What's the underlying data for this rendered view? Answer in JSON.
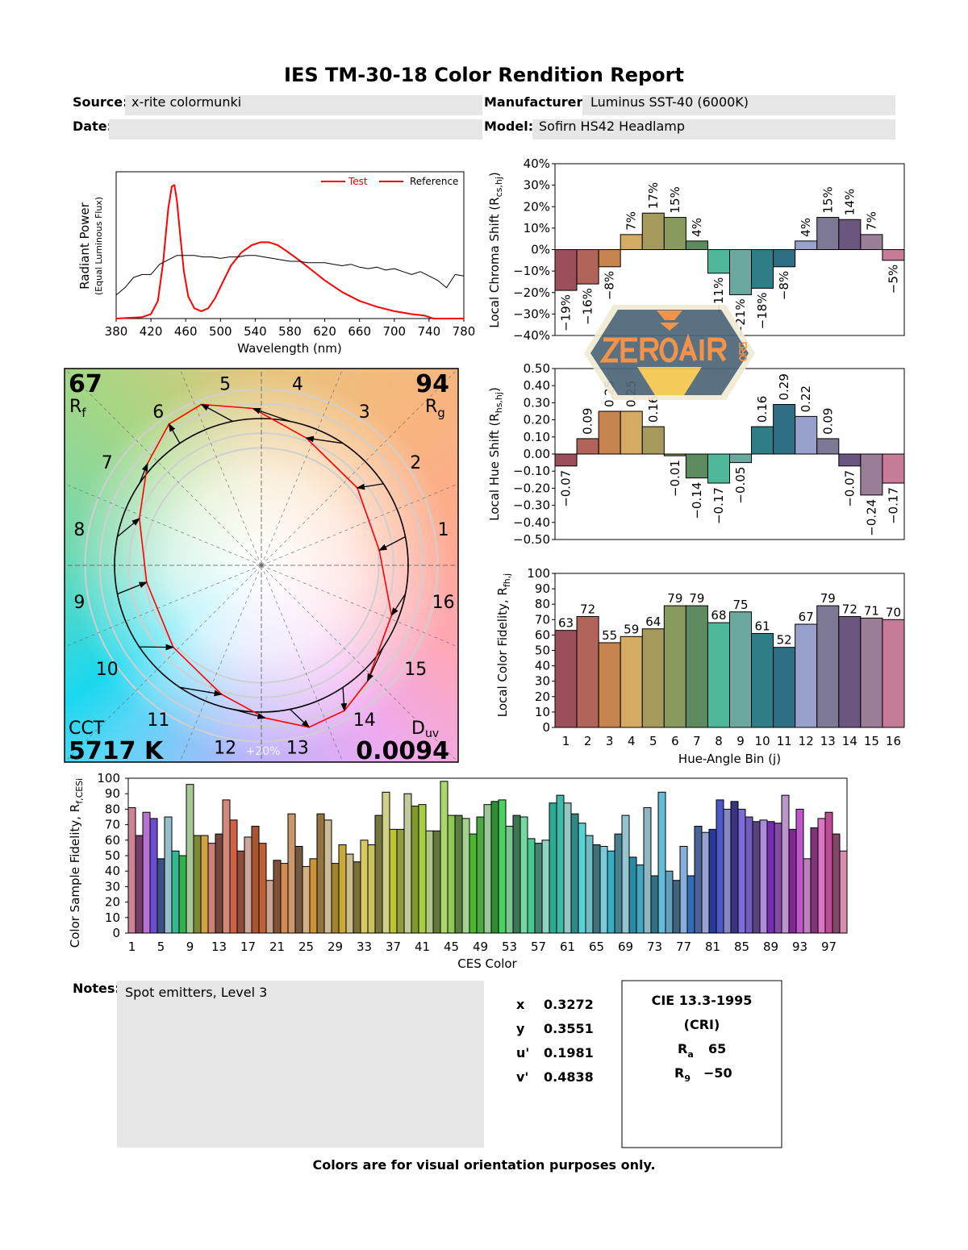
{
  "report": {
    "title": "IES TM-30-18 Color Rendition Report",
    "source_label": "Source:",
    "source_value": "x-rite colormunki",
    "manufacturer_label": "Manufacturer:",
    "manufacturer_value": "Luminus SST-40 (6000K)",
    "date_label": "Date:",
    "date_value": "",
    "model_label": "Model:",
    "model_value": "Sofirn HS42 Headlamp",
    "notes_label": "Notes:",
    "notes_value": "Spot emitters, Level 3",
    "footer": "Colors are for visual orientation purposes only.",
    "watermark_logo": "ZEROAIR.ORG"
  },
  "chromaticity": [
    {
      "label": "x",
      "value": "0.3272"
    },
    {
      "label": "y",
      "value": "0.3551"
    },
    {
      "label": "u'",
      "value": "0.1981"
    },
    {
      "label": "v'",
      "value": "0.4838"
    }
  ],
  "cri": {
    "title": "CIE 13.3-1995",
    "subtitle": "(CRI)",
    "ra_label": "R",
    "ra_sub": "a",
    "ra_value": "65",
    "r9_label": "R",
    "r9_sub": "9",
    "r9_value": "-50"
  },
  "vector_graphic": {
    "rf_value": "67",
    "rf_label": "R",
    "rf_sub": "f",
    "rg_value": "94",
    "rg_label": "R",
    "rg_sub": "g",
    "cct_label": "CCT",
    "cct_value": "5717 K",
    "duv_label": "D",
    "duv_sub": "uv",
    "duv_value": "0.0094",
    "scale_label": "+20%",
    "bin_labels": [
      "1",
      "2",
      "3",
      "4",
      "5",
      "6",
      "7",
      "8",
      "9",
      "10",
      "11",
      "12",
      "13",
      "14",
      "15",
      "16"
    ]
  },
  "colors": {
    "test": "#ff0000",
    "reference": "#000000",
    "bins": [
      "#9b4f5a",
      "#b0645a",
      "#c7844e",
      "#d3ab63",
      "#a59a5c",
      "#889a5e",
      "#5d8a5f",
      "#50b89a",
      "#6aa8a0",
      "#2f7d86",
      "#2f6f86",
      "#98a0cc",
      "#7d7894",
      "#6b5680",
      "#9a7d96",
      "#c67b98"
    ]
  },
  "chart_data": [
    {
      "type": "line",
      "name": "spectrum",
      "xlabel": "Wavelength (nm)",
      "ylabel": "Radiant Power",
      "ylabel2": "(Equal Luminous Flux)",
      "xlim": [
        380,
        780
      ],
      "xticks": [
        380,
        420,
        460,
        500,
        540,
        580,
        620,
        660,
        700,
        740,
        780
      ],
      "legend": [
        "Test",
        "Reference"
      ],
      "legend_position": "top-right",
      "series": [
        {
          "name": "Test",
          "x": [
            380,
            410,
            420,
            428,
            434,
            440,
            444,
            447,
            450,
            454,
            458,
            463,
            470,
            478,
            486,
            494,
            502,
            512,
            524,
            536,
            546,
            556,
            566,
            576,
            590,
            605,
            620,
            640,
            660,
            680,
            700,
            720,
            735,
            745,
            780
          ],
          "y": [
            0.0,
            0.01,
            0.03,
            0.12,
            0.38,
            0.75,
            0.9,
            0.91,
            0.8,
            0.55,
            0.32,
            0.15,
            0.07,
            0.05,
            0.07,
            0.14,
            0.24,
            0.36,
            0.45,
            0.5,
            0.52,
            0.52,
            0.5,
            0.46,
            0.4,
            0.33,
            0.26,
            0.18,
            0.12,
            0.08,
            0.05,
            0.03,
            0.02,
            0.0,
            0.0
          ]
        },
        {
          "name": "Reference",
          "x": [
            380,
            390,
            400,
            410,
            420,
            430,
            440,
            450,
            460,
            470,
            480,
            490,
            500,
            510,
            520,
            530,
            540,
            550,
            560,
            570,
            580,
            590,
            600,
            610,
            620,
            630,
            640,
            650,
            660,
            670,
            680,
            690,
            700,
            710,
            720,
            730,
            740,
            750,
            760,
            770,
            780
          ],
          "y": [
            0.16,
            0.21,
            0.28,
            0.3,
            0.3,
            0.37,
            0.4,
            0.43,
            0.43,
            0.43,
            0.42,
            0.42,
            0.41,
            0.42,
            0.42,
            0.43,
            0.43,
            0.42,
            0.41,
            0.4,
            0.39,
            0.39,
            0.38,
            0.38,
            0.38,
            0.37,
            0.36,
            0.37,
            0.35,
            0.34,
            0.35,
            0.33,
            0.34,
            0.32,
            0.3,
            0.32,
            0.29,
            0.26,
            0.21,
            0.3,
            0.29
          ]
        }
      ]
    },
    {
      "type": "bar",
      "name": "local-chroma-shift",
      "ylabel": "Local Chroma Shift (R",
      "ylabel_sub": "cs,hj",
      "ylim": [
        -40,
        40
      ],
      "yticks": [
        40,
        30,
        20,
        10,
        0,
        -10,
        -20,
        -30,
        -40
      ],
      "unit": "%",
      "categories": [
        "1",
        "2",
        "3",
        "4",
        "5",
        "6",
        "7",
        "8",
        "9",
        "10",
        "11",
        "12",
        "13",
        "14",
        "15",
        "16"
      ],
      "values": [
        -19,
        -16,
        -8,
        7,
        17,
        15,
        4,
        -11,
        -21,
        -18,
        -8,
        4,
        15,
        14,
        7,
        -5
      ]
    },
    {
      "type": "bar",
      "name": "local-hue-shift",
      "ylabel": "Local Hue Shift (R",
      "ylabel_sub": "hs,hj",
      "ylim": [
        -0.5,
        0.5
      ],
      "yticks": [
        0.5,
        0.4,
        0.3,
        0.2,
        0.1,
        0,
        -0.1,
        -0.2,
        -0.3,
        -0.4,
        -0.5
      ],
      "categories": [
        "1",
        "2",
        "3",
        "4",
        "5",
        "6",
        "7",
        "8",
        "9",
        "10",
        "11",
        "12",
        "13",
        "14",
        "15",
        "16"
      ],
      "values": [
        -0.07,
        0.09,
        0.25,
        0.25,
        0.16,
        -0.01,
        -0.14,
        -0.17,
        -0.05,
        0.16,
        0.29,
        0.22,
        0.09,
        -0.07,
        -0.24,
        -0.17
      ]
    },
    {
      "type": "bar",
      "name": "local-color-fidelity",
      "ylabel": "Local Color Fidelity, R",
      "ylabel_sub": "fh,j",
      "xlabel": "Hue-Angle Bin (j)",
      "ylim": [
        0,
        100
      ],
      "yticks": [
        0,
        10,
        20,
        30,
        40,
        50,
        60,
        70,
        80,
        90,
        100
      ],
      "categories": [
        "1",
        "2",
        "3",
        "4",
        "5",
        "6",
        "7",
        "8",
        "9",
        "10",
        "11",
        "12",
        "13",
        "14",
        "15",
        "16"
      ],
      "values": [
        63,
        72,
        55,
        59,
        64,
        79,
        79,
        68,
        75,
        61,
        52,
        67,
        79,
        72,
        71,
        70
      ]
    },
    {
      "type": "bar",
      "name": "color-sample-fidelity",
      "ylabel": "Color Sample Fidelity, R",
      "ylabel_sub": "f,CESi",
      "xlabel": "CES Color",
      "ylim": [
        0,
        100
      ],
      "yticks": [
        0,
        10,
        20,
        30,
        40,
        50,
        60,
        70,
        80,
        90,
        100
      ],
      "xticks": [
        1,
        5,
        9,
        13,
        17,
        21,
        25,
        29,
        33,
        37,
        41,
        45,
        49,
        53,
        57,
        61,
        65,
        69,
        73,
        77,
        81,
        85,
        89,
        93,
        97
      ],
      "values": [
        81,
        63,
        78,
        74,
        48,
        75,
        53,
        50,
        96,
        63,
        63,
        58,
        64,
        86,
        73,
        53,
        62,
        69,
        58,
        34,
        47,
        45,
        77,
        56,
        43,
        48,
        77,
        73,
        45,
        57,
        51,
        46,
        60,
        57,
        76,
        91,
        67,
        67,
        90,
        82,
        83,
        66,
        66,
        98,
        76,
        76,
        74,
        64,
        75,
        83,
        85,
        86,
        69,
        76,
        75,
        61,
        58,
        60,
        84,
        89,
        84,
        77,
        71,
        63,
        57,
        56,
        53,
        64,
        76,
        49,
        44,
        81,
        37,
        91,
        40,
        34,
        56,
        37,
        69,
        65,
        67,
        86,
        80,
        85,
        80,
        75,
        72,
        73,
        72,
        71,
        89,
        67,
        80,
        48,
        68,
        74,
        78,
        64,
        53
      ]
    }
  ]
}
